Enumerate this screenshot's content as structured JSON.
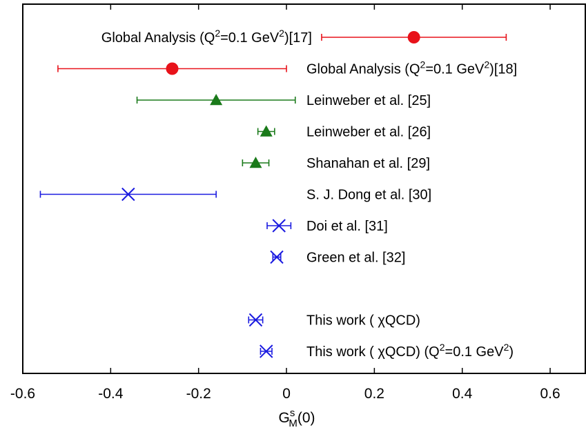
{
  "chart_data": {
    "type": "scatter",
    "title": "",
    "xlabel": "G^s_M(0)",
    "xlabel_parts": {
      "base": "G",
      "sup": "s",
      "sub": "M",
      "tail": "(0)"
    },
    "xlim": [
      -0.6,
      0.68
    ],
    "x_ticks": [
      -0.6,
      -0.4,
      -0.2,
      0,
      0.2,
      0.4,
      0.6
    ],
    "x_tick_labels": [
      "-0.6",
      "-0.4",
      "-0.2",
      "0",
      "0.2",
      "0.4",
      "0.6"
    ],
    "grid": false,
    "colors": {
      "red": "#e8121a",
      "green": "#1a7a1a",
      "blue": "#1a1ae0"
    },
    "points": [
      {
        "label": "Global Analysis (Q^2=0.1 GeV^2)[17]",
        "label_parts": [
          "Global Analysis (Q",
          "2",
          "=0.1 GeV",
          "2",
          ")[17]"
        ],
        "label_side": "left",
        "marker": "circle",
        "color": "red",
        "value": 0.29,
        "err_low": 0.08,
        "err_high": 0.5
      },
      {
        "label": "Global Analysis (Q^2=0.1 GeV^2)[18]",
        "label_parts": [
          "Global Analysis (Q",
          "2",
          "=0.1 GeV",
          "2",
          ")[18]"
        ],
        "label_side": "right",
        "marker": "circle",
        "color": "red",
        "value": -0.26,
        "err_low": -0.52,
        "err_high": 0.0
      },
      {
        "label": "Leinweber et al. [25]",
        "label_parts": [
          "Leinweber et al. [25]"
        ],
        "label_side": "right",
        "marker": "triangle",
        "color": "green",
        "value": -0.16,
        "err_low": -0.34,
        "err_high": 0.02
      },
      {
        "label": "Leinweber et al. [26]",
        "label_parts": [
          "Leinweber et al. [26]"
        ],
        "label_side": "right",
        "marker": "triangle",
        "color": "green",
        "value": -0.046,
        "err_low": -0.065,
        "err_high": -0.027
      },
      {
        "label": "Shanahan et al. [29]",
        "label_parts": [
          "Shanahan et al. [29]"
        ],
        "label_side": "right",
        "marker": "triangle",
        "color": "green",
        "value": -0.07,
        "err_low": -0.1,
        "err_high": -0.04
      },
      {
        "label": "S. J. Dong et al. [30]",
        "label_parts": [
          "S. J. Dong et al. [30]"
        ],
        "label_side": "right",
        "marker": "x",
        "color": "blue",
        "value": -0.36,
        "err_low": -0.56,
        "err_high": -0.16
      },
      {
        "label": "Doi et al. [31]",
        "label_parts": [
          "Doi et al. [31]"
        ],
        "label_side": "right",
        "marker": "x",
        "color": "blue",
        "value": -0.017,
        "err_low": -0.044,
        "err_high": 0.01
      },
      {
        "label": "Green et al. [32]",
        "label_parts": [
          "Green et al. [32]"
        ],
        "label_side": "right",
        "marker": "x",
        "color": "blue",
        "value": -0.022,
        "err_low": -0.031,
        "err_high": -0.013
      },
      {
        "label": "",
        "label_parts": [],
        "label_side": "right",
        "marker": "none",
        "color": "blue",
        "value": null,
        "err_low": null,
        "err_high": null
      },
      {
        "label": "This work ( χQCD)",
        "label_parts": [
          "This work ( χQCD)"
        ],
        "label_side": "right",
        "marker": "x",
        "color": "blue",
        "value": -0.07,
        "err_low": -0.086,
        "err_high": -0.054
      },
      {
        "label": "This work ( χQCD) (Q^2=0.1 GeV^2)",
        "label_parts": [
          "This work ( χQCD) (Q",
          "2",
          "=0.1 GeV",
          "2",
          ")"
        ],
        "label_side": "right",
        "marker": "x",
        "color": "blue",
        "value": -0.046,
        "err_low": -0.059,
        "err_high": -0.033
      }
    ]
  }
}
